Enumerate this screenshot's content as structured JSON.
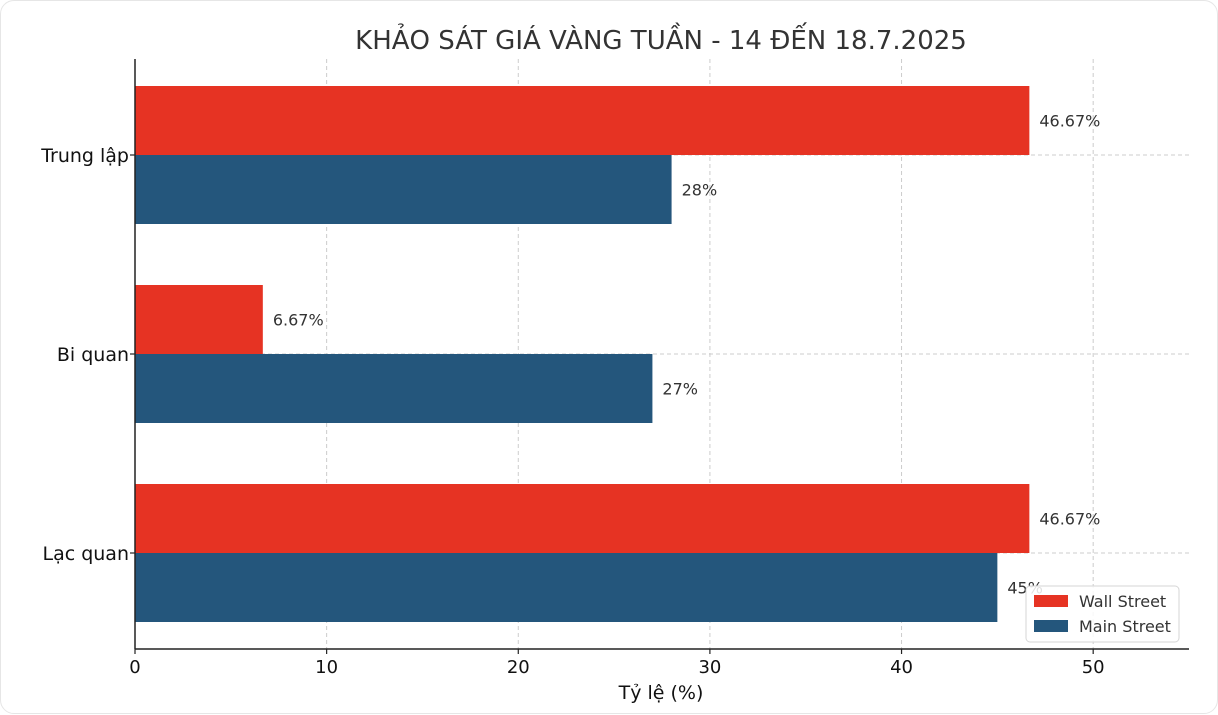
{
  "chart_data": {
    "type": "bar",
    "orientation": "horizontal",
    "title": "KHẢO SÁT GIÁ VÀNG TUẦN - 14 ĐẾN 18.7.2025",
    "xlabel": "Tỷ lệ (%)",
    "ylabel": "",
    "xlim": [
      0,
      55
    ],
    "xticks": [
      "0",
      "10",
      "20",
      "30",
      "40",
      "50"
    ],
    "xtick_values": [
      0,
      10,
      20,
      30,
      40,
      50
    ],
    "categories": [
      "Trung lập",
      "Bi quan",
      "Lạc quan"
    ],
    "series": [
      {
        "name": "Wall Street",
        "color": "#e63323",
        "values": [
          46.67,
          6.67,
          46.67
        ],
        "labels": [
          "46.67%",
          "6.67%",
          "46.67%"
        ]
      },
      {
        "name": "Main Street",
        "color": "#24567c",
        "values": [
          28,
          27,
          45
        ],
        "labels": [
          "28%",
          "27%",
          "45%"
        ]
      }
    ],
    "grid": true,
    "legend_position": "bottom-right"
  }
}
